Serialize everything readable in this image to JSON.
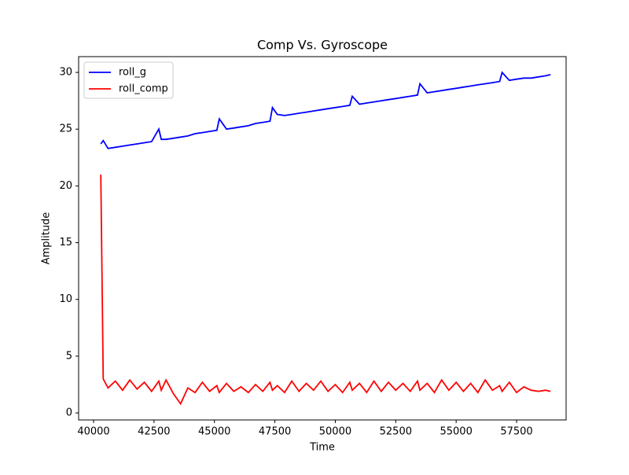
{
  "chart_data": {
    "type": "line",
    "title": "Comp Vs. Gyroscope",
    "x_label": "Time",
    "y_label": "Amplitude",
    "x": [
      40300,
      40400,
      40600,
      40900,
      41200,
      41500,
      41800,
      42100,
      42400,
      42700,
      42800,
      43000,
      43300,
      43600,
      43900,
      44200,
      44500,
      44800,
      45100,
      45200,
      45500,
      45800,
      46100,
      46400,
      46700,
      47000,
      47300,
      47400,
      47600,
      47900,
      48200,
      48500,
      48800,
      49100,
      49400,
      49700,
      50000,
      50300,
      50600,
      50700,
      51000,
      51300,
      51600,
      51900,
      52200,
      52500,
      52800,
      53100,
      53400,
      53500,
      53800,
      54100,
      54400,
      54700,
      55000,
      55300,
      55600,
      55900,
      56200,
      56500,
      56800,
      56900,
      57200,
      57500,
      57800,
      58100,
      58400,
      58700,
      58900
    ],
    "series": [
      {
        "name": "roll_g",
        "color": "#0000ff",
        "values": [
          23.7,
          24.0,
          23.3,
          23.4,
          23.5,
          23.6,
          23.7,
          23.8,
          23.9,
          25.0,
          24.1,
          24.1,
          24.2,
          24.3,
          24.4,
          24.6,
          24.7,
          24.8,
          24.9,
          25.9,
          25.0,
          25.1,
          25.2,
          25.3,
          25.5,
          25.6,
          25.7,
          26.9,
          26.3,
          26.2,
          26.3,
          26.4,
          26.5,
          26.6,
          26.7,
          26.8,
          26.9,
          27.0,
          27.1,
          27.9,
          27.2,
          27.3,
          27.4,
          27.5,
          27.6,
          27.7,
          27.8,
          27.9,
          28.0,
          29.0,
          28.2,
          28.3,
          28.4,
          28.5,
          28.6,
          28.7,
          28.8,
          28.9,
          29.0,
          29.1,
          29.2,
          30.0,
          29.3,
          29.4,
          29.5,
          29.5,
          29.6,
          29.7,
          29.8
        ]
      },
      {
        "name": "roll_comp",
        "color": "#ff0000",
        "values": [
          21.0,
          3.0,
          2.2,
          2.8,
          2.0,
          2.9,
          2.1,
          2.7,
          1.9,
          2.8,
          2.0,
          2.9,
          1.7,
          0.8,
          2.2,
          1.8,
          2.7,
          1.9,
          2.4,
          1.8,
          2.6,
          1.9,
          2.3,
          1.8,
          2.5,
          1.9,
          2.7,
          2.0,
          2.4,
          1.8,
          2.8,
          1.9,
          2.6,
          2.0,
          2.8,
          1.9,
          2.5,
          1.8,
          2.7,
          2.0,
          2.6,
          1.8,
          2.8,
          1.9,
          2.7,
          2.0,
          2.6,
          1.9,
          2.8,
          2.0,
          2.6,
          1.8,
          2.9,
          2.0,
          2.7,
          1.9,
          2.6,
          1.8,
          2.9,
          2.0,
          2.4,
          1.9,
          2.7,
          1.8,
          2.3,
          2.0,
          1.9,
          2.0,
          1.9
        ]
      }
    ],
    "xlim": [
      39382,
      59548
    ],
    "ylim": [
      -0.62,
      31.39
    ],
    "xticks": [
      40000,
      42500,
      45000,
      47500,
      50000,
      52500,
      55000,
      57500
    ],
    "yticks": [
      0,
      5,
      10,
      15,
      20,
      25,
      30
    ],
    "legend": "upper left"
  }
}
